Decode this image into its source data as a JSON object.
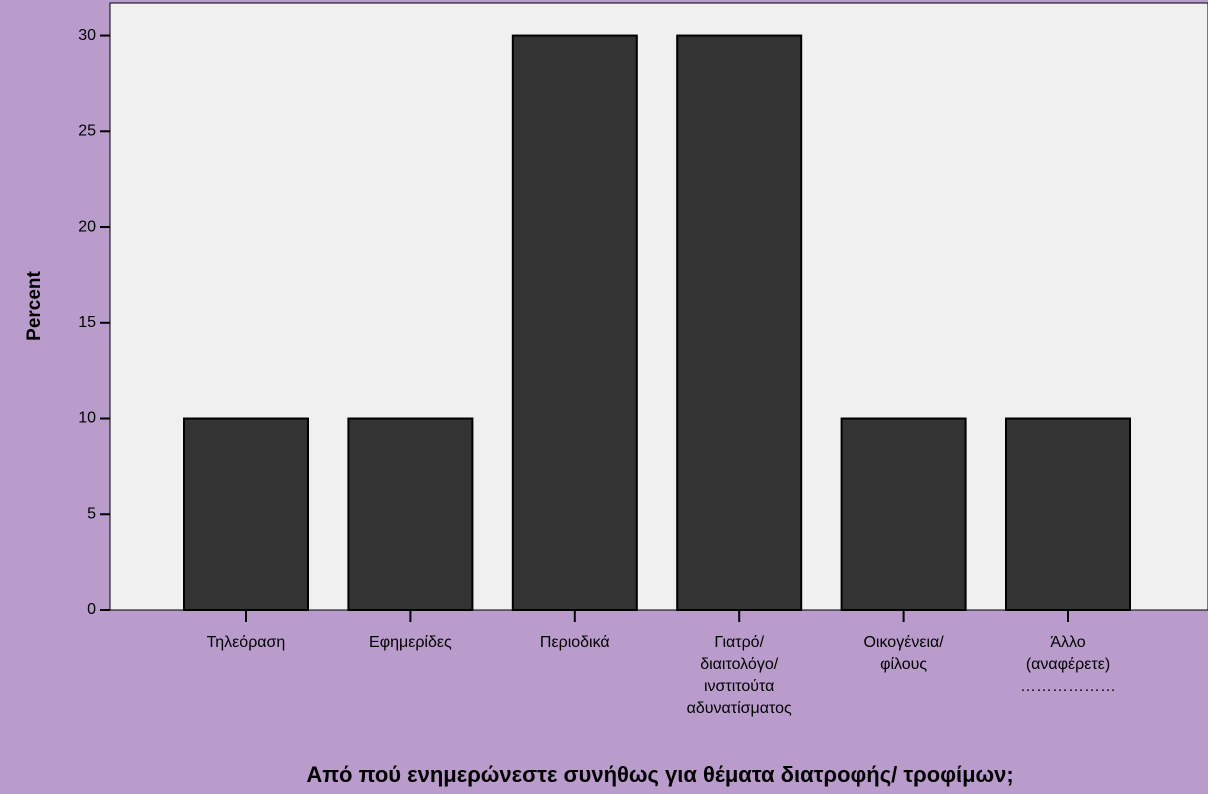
{
  "chart_data": {
    "type": "bar",
    "categories": [
      "Τηλεόραση",
      "Εφημερίδες",
      "Περιοδικά",
      "Γιατρό/\nδιαιτολόγο/\nινστιτούτα\nαδυνατίσματος",
      "Οικογένεια/\nφίλους",
      "Άλλο\n(αναφέρετε)\n………………"
    ],
    "values": [
      10,
      10,
      30,
      30,
      10,
      10
    ],
    "color": "#333333",
    "ylim": [
      0,
      31.7
    ],
    "yticks": [
      0,
      5,
      10,
      15,
      20,
      25,
      30
    ],
    "ylabel": "Percent",
    "xlabel": "Από πού ενημερώνεστε συνήθως για θέματα διατροφής/ τροφίμων;"
  }
}
